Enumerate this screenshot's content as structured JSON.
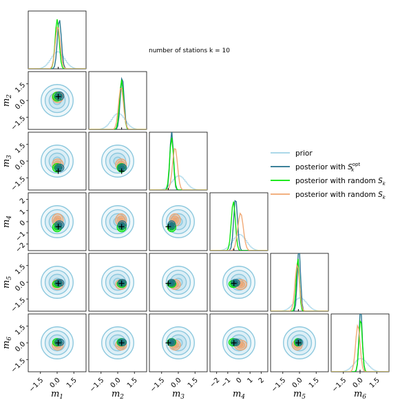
{
  "chart_data": {
    "type": "corner",
    "annotation": "number of stations k = 10",
    "parameters": [
      "m1",
      "m2",
      "m3",
      "m4",
      "m5",
      "m6"
    ],
    "axis_labels": [
      {
        "base": "m",
        "sub": "1"
      },
      {
        "base": "m",
        "sub": "2"
      },
      {
        "base": "m",
        "sub": "3"
      },
      {
        "base": "m",
        "sub": "4"
      },
      {
        "base": "m",
        "sub": "5"
      },
      {
        "base": "m",
        "sub": "6"
      }
    ],
    "xlim": [
      [
        -2.6,
        2.6
      ],
      [
        -2.6,
        2.6
      ],
      [
        -2.6,
        2.6
      ],
      [
        -2.6,
        2.6
      ],
      [
        -2.6,
        2.6
      ],
      [
        -2.6,
        2.6
      ]
    ],
    "ticks": [
      {
        "values": [
          -1.5,
          0.0,
          1.5
        ],
        "labels": [
          "−1.5",
          "0.0",
          "1.5"
        ]
      },
      {
        "values": [
          -1.5,
          0.0,
          1.5
        ],
        "labels": [
          "−1.5",
          "0.0",
          "1.5"
        ]
      },
      {
        "values": [
          -1.5,
          0.0,
          1.5
        ],
        "labels": [
          "−1.5",
          "0.0",
          "1.5"
        ]
      },
      {
        "values": [
          -2,
          -1,
          0,
          1,
          2
        ],
        "labels": [
          "−2",
          "−1",
          "0",
          "1",
          "2"
        ]
      },
      {
        "values": [
          -1.5,
          0.0,
          1.5
        ],
        "labels": [
          "−1.5",
          "0.0",
          "1.5"
        ]
      },
      {
        "values": [
          -1.5,
          0.0,
          1.5
        ],
        "labels": [
          "−1.5",
          "0.0",
          "1.5"
        ]
      }
    ],
    "true_values": [
      0.1,
      0.35,
      -0.9,
      -0.45,
      -0.1,
      0.0
    ],
    "series": [
      {
        "name": "prior",
        "color": "#9fd3e6",
        "mean": [
          0.0,
          0.0,
          0.0,
          0.0,
          0.0,
          0.0
        ],
        "sd": [
          0.6,
          0.6,
          0.6,
          0.6,
          0.6,
          0.6
        ]
      },
      {
        "name": "posterior with S_k^opt",
        "color": "#1f6f8b",
        "mean": [
          0.2,
          0.4,
          -0.6,
          -0.3,
          -0.05,
          0.05
        ],
        "sd": [
          0.18,
          0.17,
          0.15,
          0.17,
          0.14,
          0.14
        ]
      },
      {
        "name": "posterior with random S_k",
        "color": "#00e600",
        "mean": [
          0.0,
          0.35,
          -0.6,
          -0.5,
          -0.15,
          0.05
        ],
        "sd": [
          0.18,
          0.18,
          0.17,
          0.18,
          0.14,
          0.15
        ]
      },
      {
        "name": "posterior with random S_k",
        "color": "#f0a46e",
        "mean": [
          0.05,
          0.3,
          -0.3,
          0.15,
          -0.2,
          -0.2
        ],
        "sd": [
          0.22,
          0.22,
          0.22,
          0.25,
          0.2,
          0.2
        ]
      }
    ],
    "legend": [
      {
        "label": "prior",
        "sub": "",
        "sup": "",
        "color": "#9fd3e6"
      },
      {
        "label": "posterior with ",
        "sub": "k",
        "sup": "opt",
        "color": "#1f6f8b"
      },
      {
        "label": "posterior with random ",
        "sub": "k",
        "sup": "",
        "color": "#00e600"
      },
      {
        "label": "posterior with random ",
        "sub": "k",
        "sup": "",
        "color": "#f0a46e"
      }
    ],
    "legend_placement": "right",
    "grid": false
  }
}
